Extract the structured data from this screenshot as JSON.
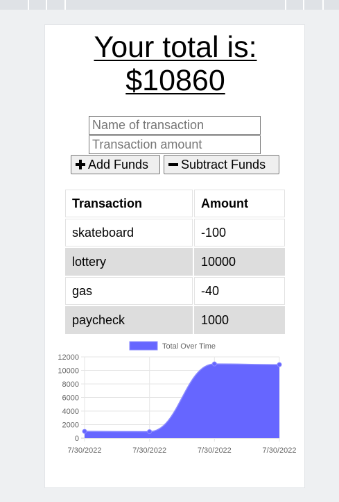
{
  "total": {
    "line1": "Your total is:",
    "line2": "$10860"
  },
  "form": {
    "name_placeholder": "Name of transaction",
    "amount_placeholder": "Transaction amount",
    "add_label": "Add Funds",
    "subtract_label": "Subtract Funds"
  },
  "table": {
    "headers": [
      "Transaction",
      "Amount"
    ],
    "rows": [
      {
        "name": "skateboard",
        "amount": "-100"
      },
      {
        "name": "lottery",
        "amount": "10000"
      },
      {
        "name": "gas",
        "amount": "-40"
      },
      {
        "name": "paycheck",
        "amount": "1000"
      }
    ]
  },
  "chart_data": {
    "type": "area",
    "x": [
      "7/30/2022",
      "7/30/2022",
      "7/30/2022",
      "7/30/2022"
    ],
    "series": [
      {
        "name": "Total Over Time",
        "values": [
          1000,
          960,
          10960,
          10860
        ],
        "color": "#6666ff"
      }
    ],
    "ylim": [
      0,
      12000
    ],
    "yticks": [
      0,
      2000,
      4000,
      6000,
      8000,
      10000,
      12000
    ],
    "legend": "top",
    "grid": true
  }
}
